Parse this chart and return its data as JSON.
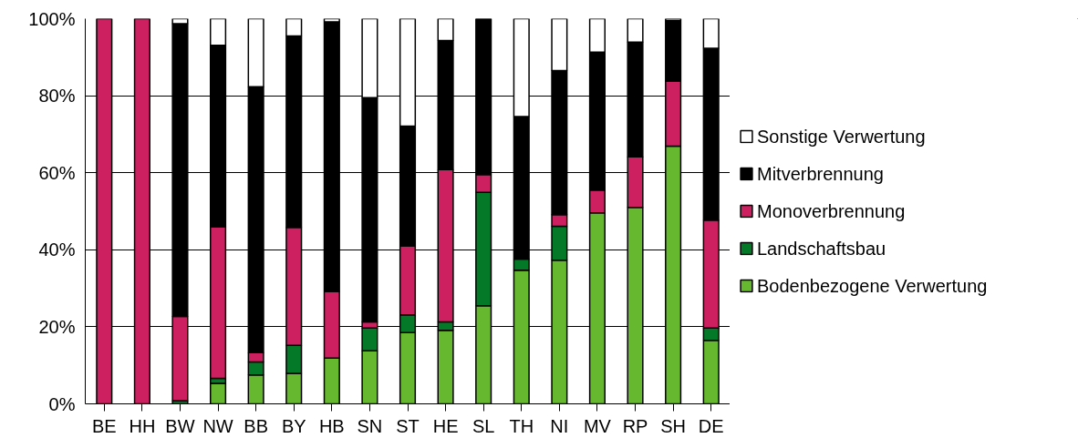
{
  "chart_data": {
    "type": "bar",
    "stacked": true,
    "categories": [
      "BE",
      "HH",
      "BW",
      "NW",
      "BB",
      "BY",
      "HB",
      "SN",
      "ST",
      "HE",
      "SL",
      "TH",
      "NI",
      "MV",
      "RP",
      "SH",
      "DE"
    ],
    "series": [
      {
        "name": "Bodenbezogene Verwertung",
        "color": "#66b82e",
        "values": [
          0,
          0,
          0,
          5.3,
          7.5,
          7.9,
          11.9,
          13.8,
          18.5,
          19.1,
          25.5,
          34.7,
          37.3,
          49.6,
          51.0,
          66.9,
          16.5
        ]
      },
      {
        "name": "Landschaftsbau",
        "color": "#047a28",
        "values": [
          0,
          0,
          0.8,
          1.3,
          3.4,
          7.3,
          0,
          5.9,
          4.6,
          2.2,
          29.4,
          2.9,
          8.8,
          0,
          0,
          0,
          3.2
        ]
      },
      {
        "name": "Monoverbrennung",
        "color": "#cc2060",
        "values": [
          100,
          100,
          21.9,
          39.3,
          2.4,
          30.6,
          17.3,
          1.6,
          17.9,
          39.5,
          4.6,
          0,
          3.0,
          5.9,
          13.1,
          16.9,
          28.0
        ]
      },
      {
        "name": "Mitverbrennung",
        "color": "#000000",
        "values": [
          0,
          0,
          76.0,
          47.2,
          69.0,
          49.7,
          70.0,
          58.2,
          31.1,
          33.5,
          40.5,
          37.0,
          37.4,
          35.8,
          29.8,
          15.7,
          44.6
        ]
      },
      {
        "name": "Sonstige Verwertung",
        "color": "#ffffff",
        "values": [
          0,
          0,
          1.3,
          6.9,
          17.7,
          4.5,
          0.8,
          20.5,
          27.9,
          5.7,
          0,
          25.4,
          13.5,
          8.7,
          6.1,
          0.5,
          7.7
        ]
      }
    ],
    "ylim": [
      0,
      100
    ],
    "yticks": [
      {
        "value": 0,
        "label": "0%"
      },
      {
        "value": 20,
        "label": "20%"
      },
      {
        "value": 40,
        "label": "40%"
      },
      {
        "value": 60,
        "label": "60%"
      },
      {
        "value": 80,
        "label": "80%"
      },
      {
        "value": 100,
        "label": "100%"
      }
    ],
    "grid": "y",
    "legend": "right"
  }
}
